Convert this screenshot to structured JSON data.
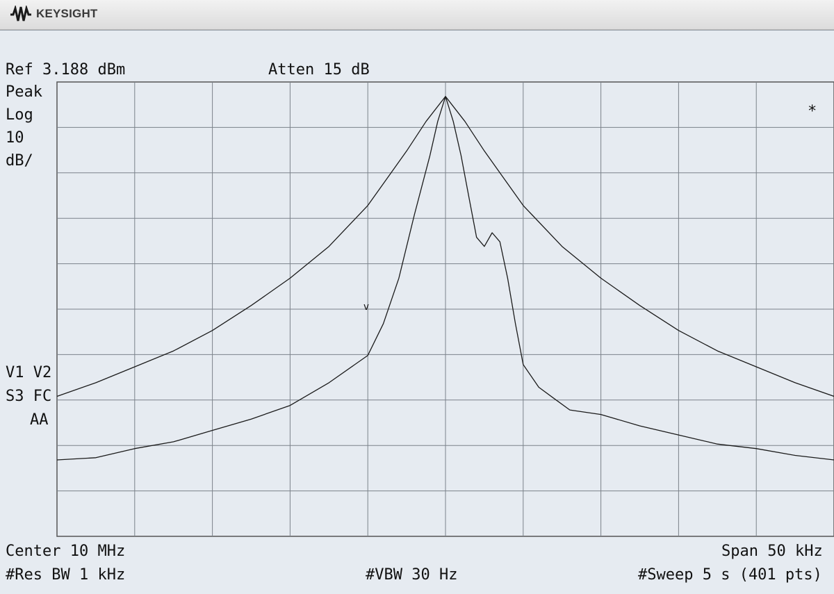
{
  "brand": {
    "name": "KEYSIGHT",
    "icon": "keysight-wave-logo",
    "accent": "#1a1a1a"
  },
  "screen": {
    "ref_level": "Ref 3.188 dBm",
    "attenuation": "Atten 15 dB",
    "detector": "Peak",
    "scale_type": "Log",
    "scale_value": "10",
    "scale_unit": "dB/",
    "indicators_line1": "V1 V2",
    "indicators_line2": "S3 FC",
    "indicators_line3": "AA",
    "asterisk": "*",
    "center": "Center 10 MHz",
    "span": "Span 50 kHz",
    "res_bw": "#Res BW 1 kHz",
    "vbw": "#VBW 30 Hz",
    "sweep": "#Sweep 5 s (401 pts)"
  },
  "chart_data": {
    "type": "line",
    "x_unit": "kHz offset from center",
    "xlim": [
      -25,
      25
    ],
    "ylim": [
      -96.812,
      3.188
    ],
    "grid": true,
    "grid_divisions": [
      10,
      10
    ],
    "series": [
      {
        "x": [
          -25,
          -22.5,
          -20,
          -17.5,
          -15,
          -12.5,
          -10,
          -7.5,
          -5,
          -2.5,
          -1.25,
          0,
          1.25,
          2.5,
          5,
          7.5,
          10,
          12.5,
          15,
          17.5,
          20,
          22.5,
          25
        ],
        "y": [
          -66,
          -63,
          -59.5,
          -56,
          -51.5,
          -46,
          -40,
          -33,
          -24,
          -12,
          -5.5,
          0,
          -5.5,
          -12,
          -24,
          -33,
          -40,
          -46,
          -51.5,
          -56,
          -59.5,
          -63,
          -66
        ],
        "color": "#1a1a1a"
      },
      {
        "x": [
          -25,
          -22.5,
          -20,
          -17.5,
          -15,
          -12.5,
          -10,
          -7.5,
          -5,
          -4,
          -3,
          -2,
          -1,
          -0.5,
          0,
          0.5,
          1,
          1.5,
          2,
          2.5,
          3,
          3.5,
          4,
          4.5,
          5,
          6,
          7,
          8,
          10,
          12.5,
          15,
          17.5,
          20,
          22.5,
          25
        ],
        "y": [
          -80,
          -79.5,
          -77.5,
          -76,
          -73.5,
          -71,
          -68,
          -63,
          -57,
          -50,
          -40,
          -26,
          -13,
          -5.5,
          0,
          -5.5,
          -13,
          -22,
          -31,
          -33,
          -30,
          -32,
          -40,
          -50,
          -59,
          -64,
          -66.5,
          -69,
          -70,
          -72.5,
          -74.5,
          -76.5,
          -77.5,
          -79,
          -80
        ],
        "color": "#1a1a1a"
      }
    ],
    "annotations": [
      {
        "text": "v",
        "x": -5.1,
        "y": -47
      }
    ]
  }
}
